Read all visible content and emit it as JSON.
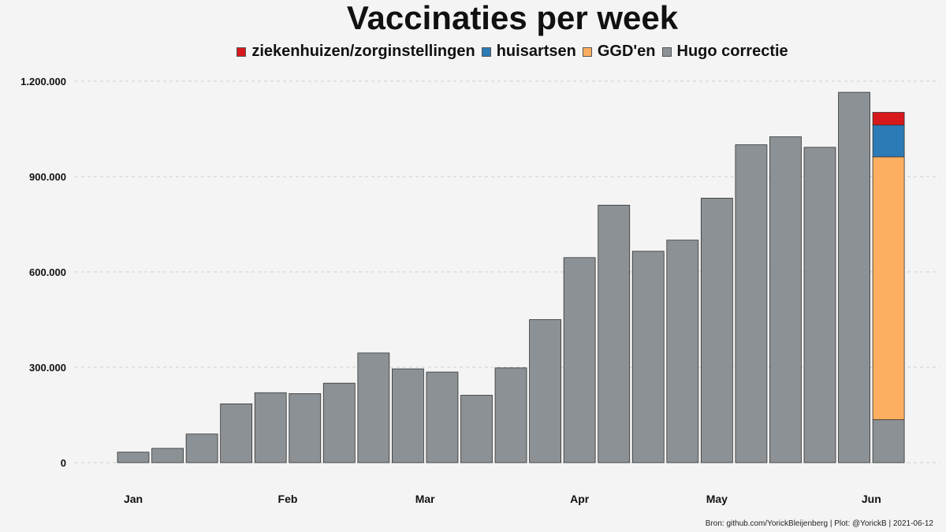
{
  "chart_data": {
    "type": "bar",
    "stacked": true,
    "title": "Vaccinaties per week",
    "xlabel": "",
    "ylabel": "",
    "ylim": [
      0,
      1200000
    ],
    "yticks": [
      0,
      300000,
      600000,
      900000,
      1200000
    ],
    "ytick_labels": [
      "0",
      "300.000",
      "600.000",
      "900.000",
      "1.200.000"
    ],
    "xtick_labels": [
      "Jan",
      "Feb",
      "Mar",
      "Apr",
      "May",
      "Jun"
    ],
    "xtick_positions": [
      0,
      4.5,
      8.5,
      13,
      17,
      21.5
    ],
    "grid": "horizontal dashed",
    "legend_position": "top",
    "series": [
      {
        "name": "Hugo correctie",
        "color": "#8b9194",
        "values": [
          33000,
          45000,
          90000,
          185000,
          220000,
          217000,
          250000,
          345000,
          295000,
          285000,
          212000,
          298000,
          450000,
          645000,
          810000,
          665000,
          700000,
          832000,
          1000000,
          1025000,
          992000,
          1165000,
          135000
        ]
      },
      {
        "name": "GGD'en",
        "color": "#fdae61",
        "values": [
          0,
          0,
          0,
          0,
          0,
          0,
          0,
          0,
          0,
          0,
          0,
          0,
          0,
          0,
          0,
          0,
          0,
          0,
          0,
          0,
          0,
          0,
          827000
        ]
      },
      {
        "name": "huisartsen",
        "color": "#2c7bb6",
        "values": [
          0,
          0,
          0,
          0,
          0,
          0,
          0,
          0,
          0,
          0,
          0,
          0,
          0,
          0,
          0,
          0,
          0,
          0,
          0,
          0,
          0,
          0,
          100000
        ]
      },
      {
        "name": "ziekenhuizen/zorginstellingen",
        "color": "#d7191c",
        "values": [
          0,
          0,
          0,
          0,
          0,
          0,
          0,
          0,
          0,
          0,
          0,
          0,
          0,
          0,
          0,
          0,
          0,
          0,
          0,
          0,
          0,
          0,
          40000
        ]
      }
    ]
  },
  "legend": {
    "items": [
      {
        "label": "ziekenhuizen/zorginstellingen",
        "color": "#d7191c"
      },
      {
        "label": "huisartsen",
        "color": "#2c7bb6"
      },
      {
        "label": "GGD'en",
        "color": "#fdae61"
      },
      {
        "label": "Hugo correctie",
        "color": "#8b9194"
      }
    ]
  },
  "source": "Bron: github.com/YorickBleijenberg | Plot: @YorickB  |  2021-06-12"
}
